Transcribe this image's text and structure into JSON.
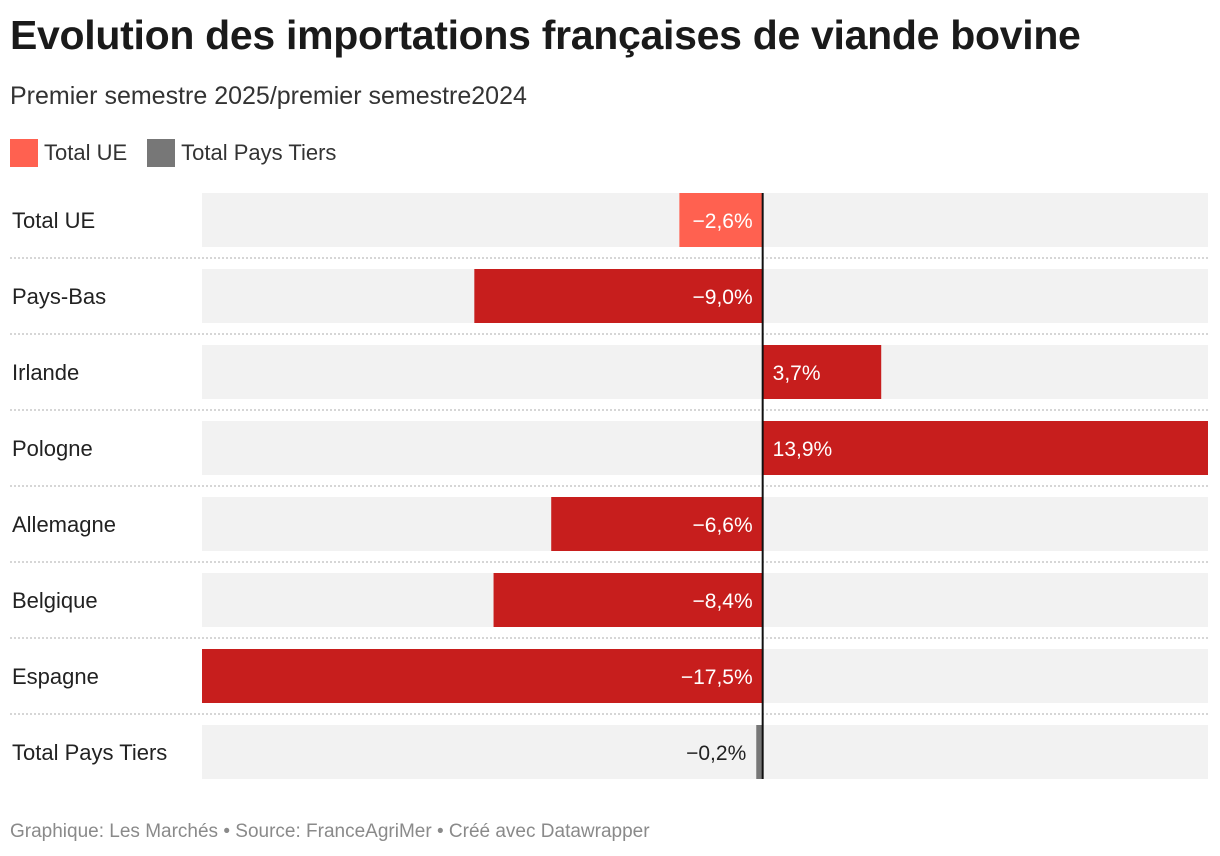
{
  "title": "Evolution des importations françaises de viande bovine",
  "subtitle": "Premier semestre 2025/premier semestre2024",
  "legend": [
    {
      "label": "Total UE",
      "color": "#ff6150"
    },
    {
      "label": "Total Pays Tiers",
      "color": "#777777"
    }
  ],
  "footer": {
    "graphique": "Graphique: Les Marchés",
    "source": "Source: FranceAgriMer",
    "credit": "Créé avec Datawrapper",
    "separator": " • "
  },
  "colors": {
    "total_ue": "#ff6150",
    "country": "#c71e1d",
    "total_tiers": "#777777",
    "background_bar": "#f2f2f2"
  },
  "chart_data": {
    "type": "bar",
    "orientation": "horizontal",
    "xlim": [
      -17.5,
      13.9
    ],
    "categories": [
      "Total UE",
      "Pays-Bas",
      "Irlande",
      "Pologne",
      "Allemagne",
      "Belgique",
      "Espagne",
      "Total Pays Tiers"
    ],
    "values": [
      -2.6,
      -9.0,
      3.7,
      13.9,
      -6.6,
      -8.4,
      -17.5,
      -0.2
    ],
    "labels": [
      "−2,6%",
      "−9,0%",
      "3,7%",
      "13,9%",
      "−6,6%",
      "−8,4%",
      "−17,5%",
      "−0,2%"
    ],
    "groups": [
      "total_ue",
      "country",
      "country",
      "country",
      "country",
      "country",
      "country",
      "total_tiers"
    ]
  }
}
